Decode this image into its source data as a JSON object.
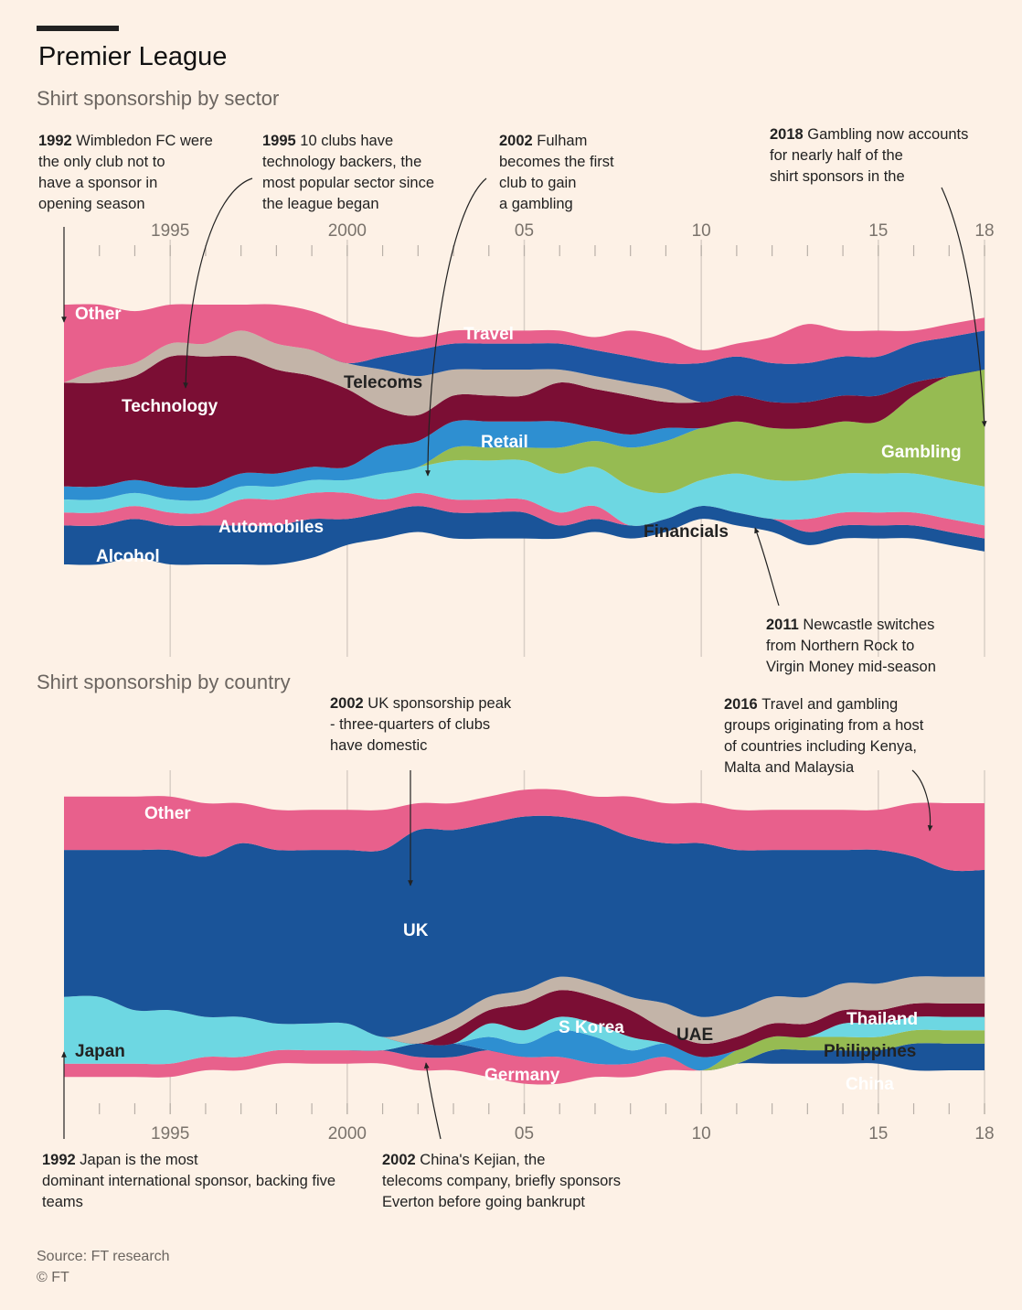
{
  "header": {
    "title": "Premier League",
    "subtitle_sector": "Shirt sponsorship by sector",
    "subtitle_country": "Shirt sponsorship by country"
  },
  "footer": {
    "source": "Source: FT research",
    "copyright": "© FT"
  },
  "chart_data": [
    {
      "type": "area",
      "subtype": "streamgraph",
      "title": "Shirt sponsorship by sector",
      "x": [
        1992,
        1993,
        1994,
        1995,
        1996,
        1997,
        1998,
        1999,
        2000,
        2001,
        2002,
        2003,
        2004,
        2005,
        2006,
        2007,
        2008,
        2009,
        2010,
        2011,
        2012,
        2013,
        2014,
        2015,
        2016,
        2017,
        2018
      ],
      "x_ticks": [
        "1995",
        "2000",
        "05",
        "10",
        "15",
        "18"
      ],
      "x_tick_values": [
        1995,
        2000,
        2005,
        2010,
        2015,
        2018
      ],
      "grid": false,
      "series": [
        {
          "name": "Alcohol",
          "color": "#1a5499",
          "values": [
            3,
            3,
            3,
            3,
            3,
            3,
            3,
            3,
            2,
            2,
            2,
            2,
            2,
            2,
            1,
            1,
            1,
            1,
            1,
            1,
            1,
            1,
            1,
            1,
            1,
            1,
            1
          ]
        },
        {
          "name": "Automobiles",
          "color": "#e8618c",
          "values": [
            1,
            1,
            1,
            1,
            1,
            2,
            2,
            2,
            2,
            1,
            1,
            1,
            1,
            1,
            1,
            1,
            0,
            0,
            0,
            0,
            0,
            1,
            1,
            1,
            1,
            1,
            1
          ]
        },
        {
          "name": "Financials",
          "color": "#6dd7e2",
          "values": [
            1,
            1,
            1,
            1,
            1,
            1,
            1,
            1,
            1,
            2,
            2,
            3,
            3,
            3,
            3,
            3,
            3,
            2,
            2,
            3,
            3,
            3,
            3,
            3,
            3,
            3,
            3
          ]
        },
        {
          "name": "Gambling",
          "color": "#96bb52",
          "values": [
            0,
            0,
            0,
            0,
            0,
            0,
            0,
            0,
            0,
            0,
            0,
            1,
            1,
            1,
            2,
            2,
            3,
            4,
            4,
            4,
            4,
            4,
            4,
            4,
            6,
            8,
            9
          ]
        },
        {
          "name": "Retail",
          "color": "#2e8fd1",
          "values": [
            1,
            1,
            1,
            1,
            1,
            1,
            1,
            1,
            1,
            2,
            2,
            2,
            2,
            2,
            2,
            1,
            1,
            1,
            0,
            0,
            0,
            0,
            0,
            0,
            0,
            0,
            0
          ]
        },
        {
          "name": "Technology",
          "color": "#7b0e34",
          "values": [
            8,
            8,
            8,
            10,
            10,
            9,
            8,
            7,
            6,
            3,
            2,
            2,
            2,
            2,
            3,
            3,
            3,
            2,
            2,
            2,
            2,
            2,
            2,
            2,
            1,
            0,
            0
          ]
        },
        {
          "name": "Telecoms",
          "color": "#c3b4a8",
          "values": [
            0,
            1,
            1,
            1,
            1,
            2,
            2,
            2,
            2,
            3,
            3,
            2,
            2,
            2,
            1,
            1,
            1,
            1,
            0,
            0,
            0,
            0,
            0,
            0,
            0,
            0,
            0
          ]
        },
        {
          "name": "Travel",
          "color": "#1d56a2",
          "values": [
            0,
            0,
            0,
            0,
            0,
            0,
            0,
            0,
            0,
            1,
            2,
            2,
            2,
            2,
            2,
            2,
            2,
            2,
            3,
            3,
            3,
            3,
            3,
            3,
            3,
            3,
            3
          ]
        },
        {
          "name": "Other",
          "color": "#e8608c",
          "values": [
            6,
            5,
            4,
            3,
            3,
            2,
            3,
            3,
            3,
            2,
            1,
            1,
            1,
            1,
            1,
            1,
            2,
            2,
            1,
            1,
            2,
            3,
            2,
            2,
            1,
            1,
            1
          ]
        }
      ],
      "annotations": [
        {
          "year": "1992",
          "text": "Wimbledon FC were the only club not to have a sponsor in opening season"
        },
        {
          "year": "1995",
          "text": "10 clubs have technology backers, the most popular sector since the league began"
        },
        {
          "year": "2002",
          "text": "Fulham becomes the first club to gain a gambling sponsor"
        },
        {
          "year": "2018",
          "text": "Gambling now accounts for nearly half of the shirt sponsors in the league"
        },
        {
          "year": "2011",
          "text": "Newcastle switches from Northern Rock to Virgin Money mid-season"
        }
      ]
    },
    {
      "type": "area",
      "subtype": "streamgraph",
      "title": "Shirt sponsorship by country",
      "x": [
        1992,
        1993,
        1994,
        1995,
        1996,
        1997,
        1998,
        1999,
        2000,
        2001,
        2002,
        2003,
        2004,
        2005,
        2006,
        2007,
        2008,
        2009,
        2010,
        2011,
        2012,
        2013,
        2014,
        2015,
        2016,
        2017,
        2018
      ],
      "x_ticks": [
        "1995",
        "2000",
        "05",
        "10",
        "15",
        "18"
      ],
      "x_tick_values": [
        1995,
        2000,
        2005,
        2010,
        2015,
        2018
      ],
      "grid": false,
      "series": [
        {
          "name": "Germany",
          "color": "#e8618c",
          "values": [
            1,
            1,
            1,
            1,
            1,
            1,
            1,
            1,
            1,
            1,
            1,
            1,
            2,
            2,
            2,
            1,
            1,
            1,
            0,
            0,
            0,
            0,
            0,
            0,
            0,
            0,
            0
          ]
        },
        {
          "name": "China",
          "color": "#1a5499",
          "values": [
            0,
            0,
            0,
            0,
            0,
            0,
            0,
            0,
            0,
            0,
            1,
            1,
            0,
            0,
            0,
            0,
            0,
            0,
            0,
            0,
            1,
            1,
            1,
            1,
            2,
            2,
            2
          ]
        },
        {
          "name": "Philippines",
          "color": "#96bb52",
          "values": [
            0,
            0,
            0,
            0,
            0,
            0,
            0,
            0,
            0,
            0,
            0,
            0,
            0,
            0,
            0,
            0,
            0,
            0,
            0,
            1,
            1,
            1,
            1,
            1,
            1,
            1,
            1
          ]
        },
        {
          "name": "S Korea",
          "color": "#2e8fd1",
          "values": [
            0,
            0,
            0,
            0,
            0,
            0,
            0,
            0,
            0,
            0,
            0,
            0,
            1,
            1,
            2,
            2,
            1,
            1,
            1,
            0,
            0,
            0,
            0,
            0,
            0,
            0,
            0
          ]
        },
        {
          "name": "Japan",
          "color": "#6dd7e2",
          "values": [
            5,
            5,
            4,
            4,
            3,
            3,
            2,
            2,
            2,
            1,
            0,
            0,
            1,
            1,
            1,
            1,
            1,
            0,
            0,
            0,
            0,
            0,
            1,
            1,
            1,
            1,
            1
          ]
        },
        {
          "name": "UAE",
          "color": "#7b0e34",
          "values": [
            0,
            0,
            0,
            0,
            0,
            0,
            0,
            0,
            0,
            0,
            0,
            1,
            1,
            2,
            2,
            2,
            2,
            1,
            1,
            1,
            1,
            1,
            1,
            1,
            1,
            1,
            1
          ]
        },
        {
          "name": "Thailand",
          "color": "#c3b4a8",
          "values": [
            0,
            0,
            0,
            0,
            0,
            0,
            0,
            0,
            0,
            0,
            1,
            1,
            1,
            1,
            1,
            1,
            1,
            2,
            2,
            2,
            2,
            2,
            2,
            2,
            2,
            2,
            2
          ]
        },
        {
          "name": "UK",
          "color": "#1a5499",
          "values": [
            11,
            11,
            12,
            12,
            12,
            13,
            13,
            13,
            13,
            14,
            15,
            14,
            13,
            13,
            12,
            12,
            12,
            12,
            13,
            12,
            11,
            11,
            10,
            10,
            9,
            8,
            8
          ]
        },
        {
          "name": "Other",
          "color": "#e8608c",
          "values": [
            4,
            4,
            4,
            4,
            4,
            3,
            3,
            3,
            3,
            3,
            2,
            2,
            2,
            2,
            2,
            2,
            3,
            3,
            3,
            3,
            3,
            3,
            3,
            3,
            4,
            5,
            5
          ]
        }
      ],
      "annotations": [
        {
          "year": "2002",
          "text": "UK sponsorship peak - three-quarters of clubs have domestic sponsors"
        },
        {
          "year": "2016",
          "text": "Travel and gambling groups originating from a host of countries including Kenya, Malta and Malaysia"
        },
        {
          "year": "1992",
          "text": "Japan is the most dominant international sponsor, backing five teams"
        },
        {
          "year": "2002",
          "text": "China's Kejian, the telecoms company, briefly sponsors Everton before going bankrupt"
        }
      ]
    }
  ]
}
